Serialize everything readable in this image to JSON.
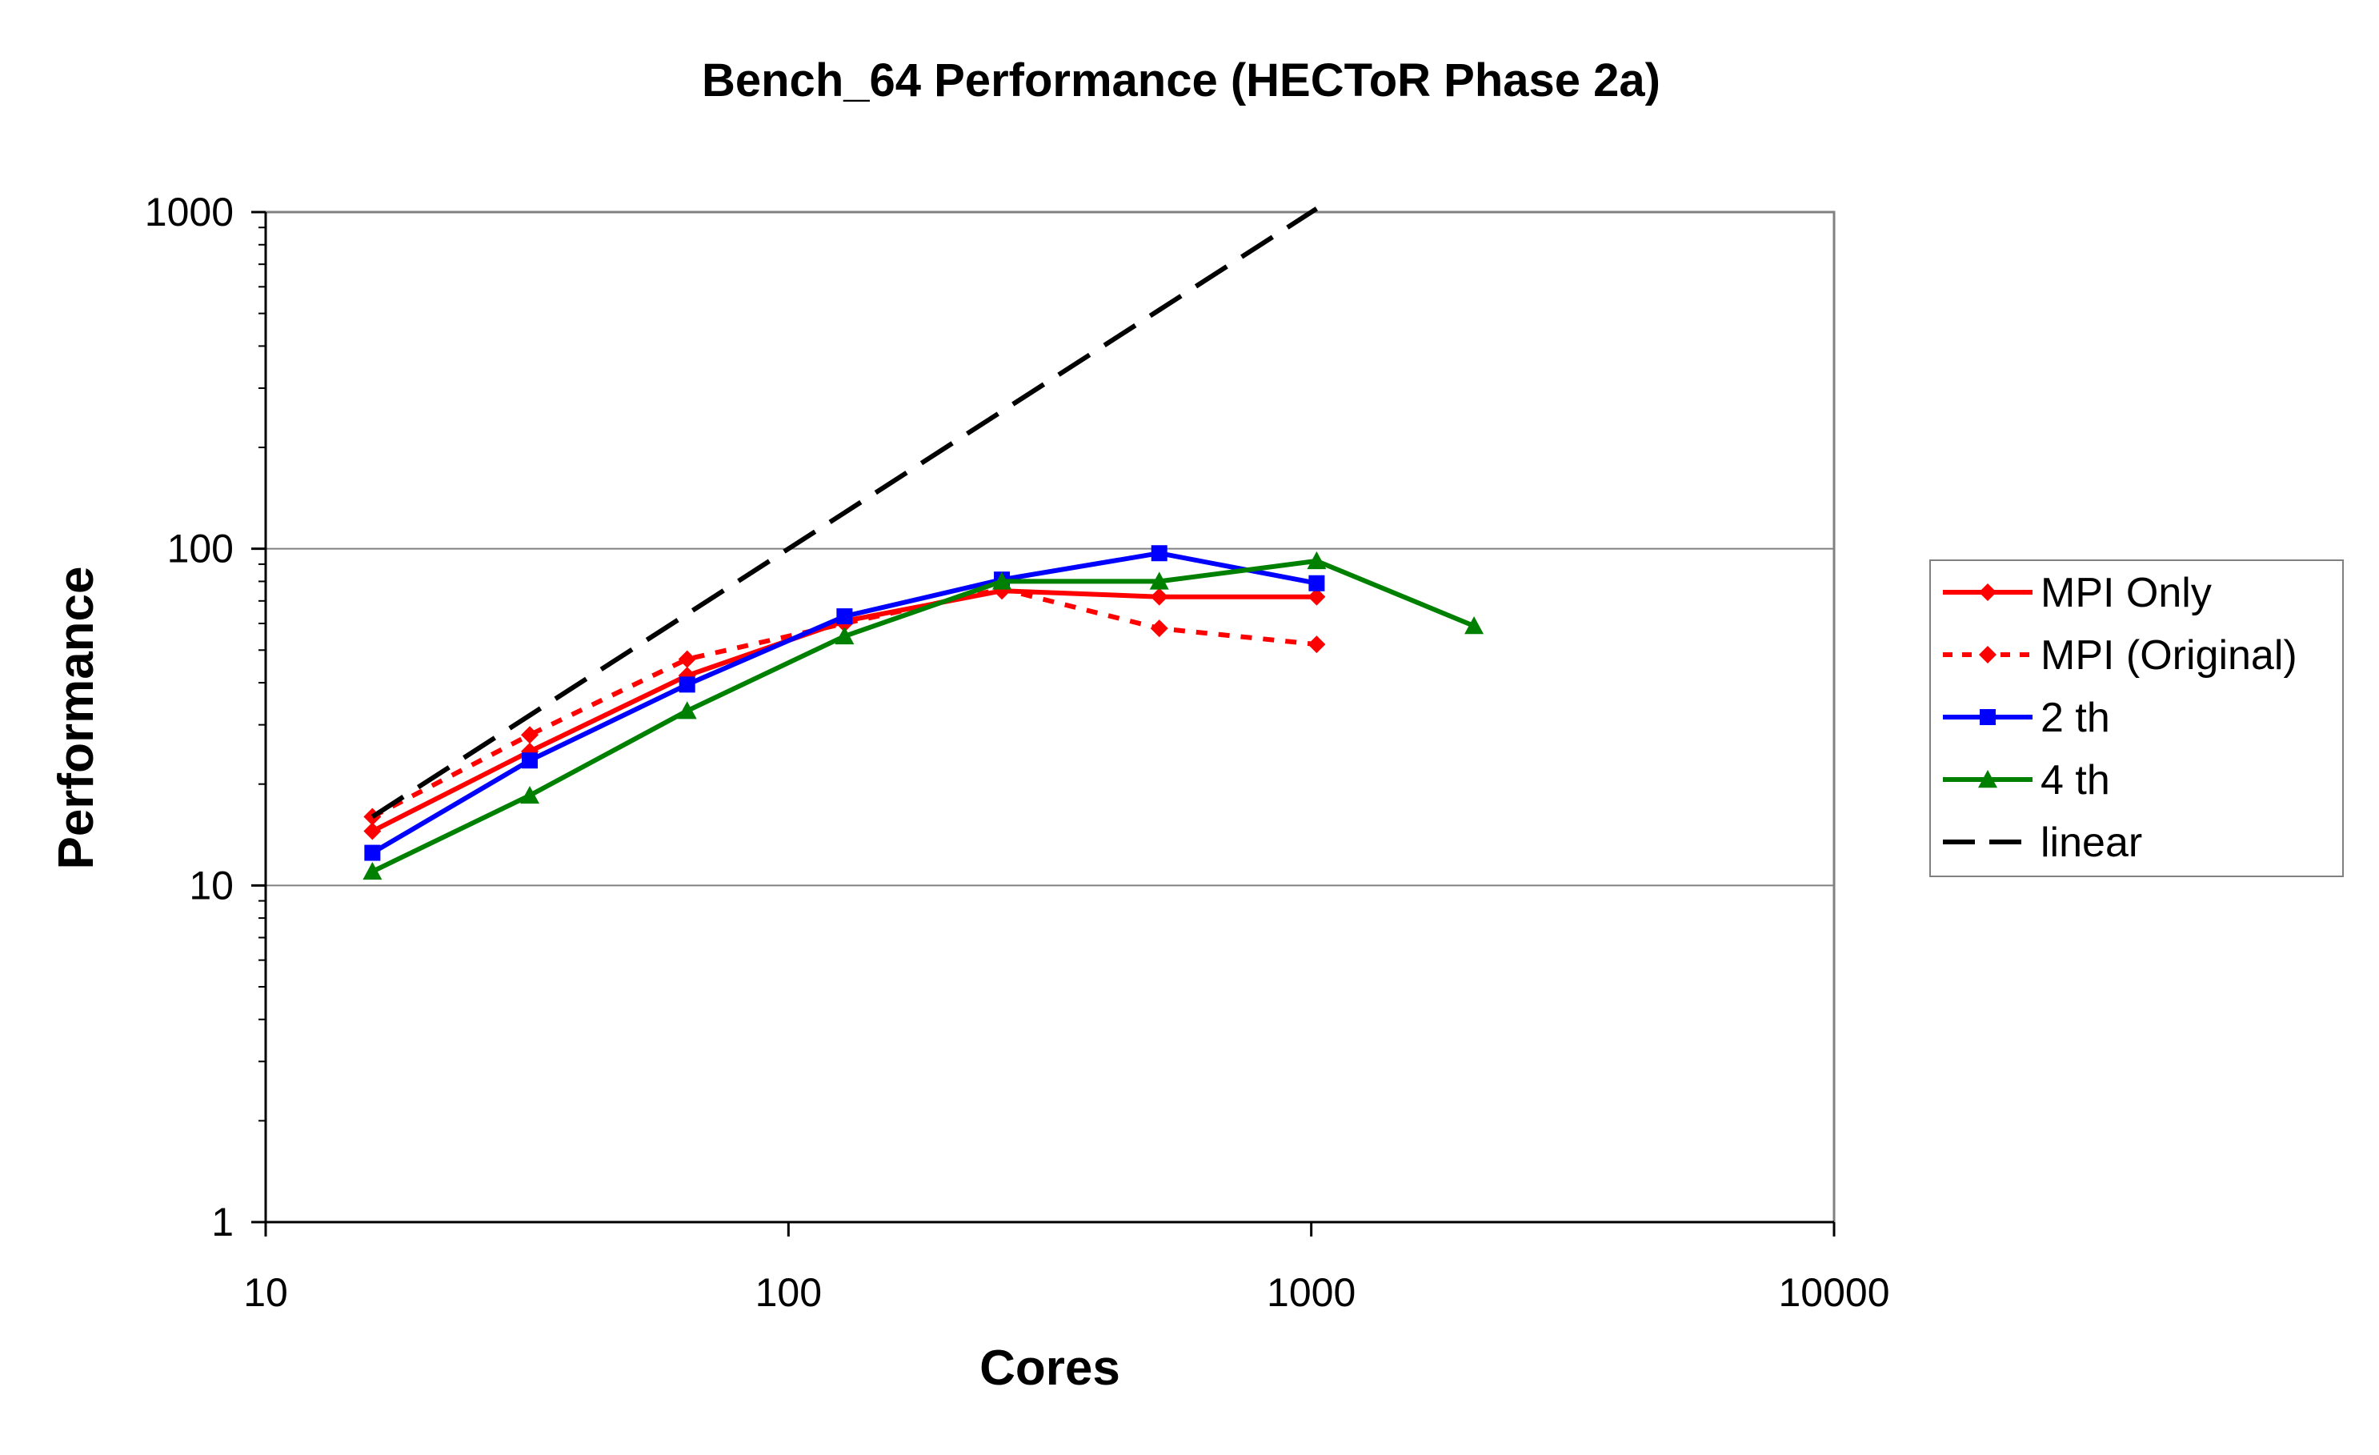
{
  "chart_data": {
    "type": "line",
    "title": "Bench_64 Performance (HECToR Phase 2a)",
    "xlabel": "Cores",
    "ylabel": "Performance",
    "x_scale": "log",
    "y_scale": "log",
    "xlim": [
      10,
      10000
    ],
    "ylim": [
      1,
      1000
    ],
    "x_ticks": [
      "10",
      "100",
      "1000",
      "10000"
    ],
    "y_ticks": [
      "1",
      "10",
      "100",
      "1000"
    ],
    "grid": "horizontal major gridlines",
    "legend_position": "right",
    "series": [
      {
        "name": "MPI Only",
        "color": "#ff0000",
        "line": "solid",
        "marker": "diamond",
        "x": [
          16,
          32,
          64,
          128,
          256,
          512,
          1024
        ],
        "y": [
          14.5,
          25,
          42,
          61,
          75,
          72,
          72
        ]
      },
      {
        "name": "MPI (Original)",
        "color": "#ff0000",
        "line": "dotted",
        "marker": "diamond",
        "x": [
          16,
          32,
          64,
          128,
          256,
          512,
          1024
        ],
        "y": [
          16,
          28,
          47,
          60,
          76,
          58,
          52
        ]
      },
      {
        "name": "2 th",
        "color": "#0000ff",
        "line": "solid",
        "marker": "square",
        "x": [
          16,
          32,
          64,
          128,
          256,
          512,
          1024
        ],
        "y": [
          12.5,
          23.5,
          39.5,
          63,
          81,
          97,
          79
        ]
      },
      {
        "name": "4 th",
        "color": "#008000",
        "line": "solid",
        "marker": "triangle",
        "x": [
          16,
          32,
          64,
          128,
          256,
          512,
          1024,
          2048
        ],
        "y": [
          11,
          18.5,
          33,
          55,
          80,
          80,
          92,
          59
        ]
      },
      {
        "name": "linear",
        "color": "#000000",
        "line": "dashed",
        "marker": "none",
        "x": [
          16,
          32,
          64,
          128,
          256,
          512,
          1024
        ],
        "y": [
          16,
          32,
          64,
          128,
          256,
          512,
          1024
        ]
      }
    ]
  }
}
